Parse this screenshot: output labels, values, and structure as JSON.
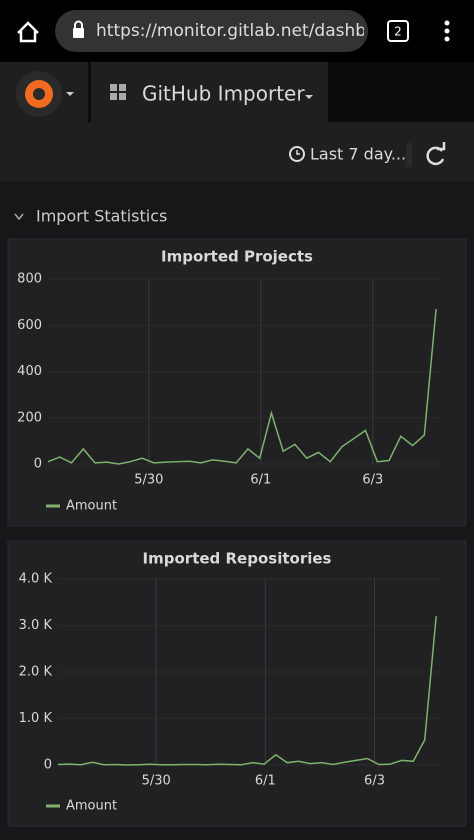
{
  "browser": {
    "url": "https://monitor.gitlab.net/dashboar",
    "tab_count": "2"
  },
  "dashboard_title": "GitHub Importer",
  "time_range": "Last 7 day...",
  "row_title": "Import Statistics",
  "chart_data": [
    {
      "type": "line",
      "title": "Imported Projects",
      "x": [
        28.2,
        28.41,
        28.62,
        28.83,
        29.04,
        29.25,
        29.46,
        29.67,
        29.88,
        30.09,
        30.3,
        30.51,
        30.72,
        30.93,
        31.14,
        31.35,
        31.56,
        31.77,
        31.98,
        32.19,
        32.4,
        32.61,
        32.82,
        33.03,
        33.24,
        33.45,
        33.66,
        33.87,
        34.08,
        34.29,
        34.5,
        34.71,
        34.92,
        35.13
      ],
      "series": [
        {
          "name": "Amount",
          "color": "#7eb26d",
          "values": [
            10,
            30,
            5,
            65,
            5,
            8,
            0,
            10,
            25,
            5,
            8,
            10,
            12,
            5,
            18,
            12,
            5,
            65,
            25,
            220,
            55,
            85,
            25,
            50,
            10,
            75,
            110,
            145,
            10,
            15,
            120,
            80,
            125,
            670
          ]
        }
      ],
      "xlim": [
        28.2,
        35.2
      ],
      "xticks": [
        {
          "value": 30,
          "label": "5/30"
        },
        {
          "value": 32,
          "label": "6/1"
        },
        {
          "value": 34,
          "label": "6/3"
        }
      ],
      "ylim": [
        0,
        800
      ],
      "yticks": [
        0,
        200,
        400,
        600,
        800
      ],
      "grid": true,
      "legend": "bottom-left"
    },
    {
      "type": "line",
      "title": "Imported Repositories",
      "x": [
        28.2,
        28.41,
        28.62,
        28.83,
        29.04,
        29.25,
        29.46,
        29.67,
        29.88,
        30.09,
        30.3,
        30.51,
        30.72,
        30.93,
        31.14,
        31.35,
        31.56,
        31.77,
        31.98,
        32.19,
        32.4,
        32.61,
        32.82,
        33.03,
        33.24,
        33.45,
        33.66,
        33.87,
        34.08,
        34.29,
        34.5,
        34.71,
        34.92,
        35.13
      ],
      "series": [
        {
          "name": "Amount",
          "color": "#7eb26d",
          "values": [
            10,
            20,
            5,
            60,
            5,
            10,
            0,
            5,
            15,
            5,
            5,
            10,
            10,
            5,
            15,
            10,
            5,
            50,
            20,
            220,
            50,
            80,
            30,
            50,
            10,
            60,
            100,
            140,
            10,
            20,
            100,
            80,
            540,
            3200
          ]
        }
      ],
      "xlim": [
        28.2,
        35.2
      ],
      "xticks": [
        {
          "value": 30,
          "label": "5/30"
        },
        {
          "value": 32,
          "label": "6/1"
        },
        {
          "value": 34,
          "label": "6/3"
        }
      ],
      "ylim": [
        0,
        4000
      ],
      "yticks": [
        0,
        {
          "value": 1000,
          "label": "1.0 K"
        },
        {
          "value": 2000,
          "label": "2.0 K"
        },
        {
          "value": 3000,
          "label": "3.0 K"
        },
        {
          "value": 4000,
          "label": "4.0 K"
        }
      ],
      "grid": true,
      "legend": "bottom-left"
    }
  ]
}
